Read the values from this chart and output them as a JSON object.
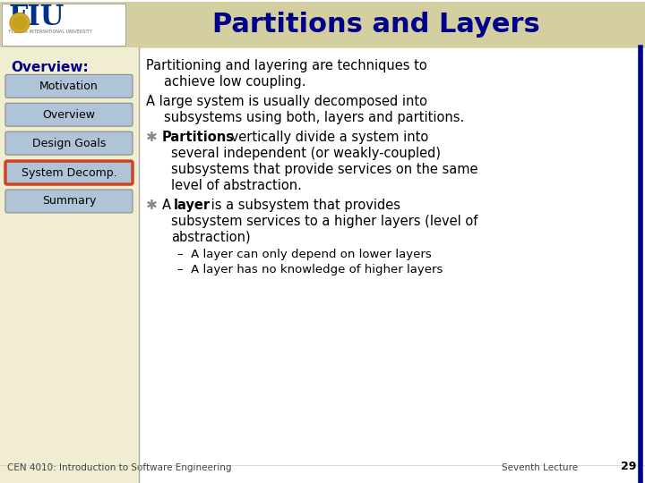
{
  "title": "Partitions and Layers",
  "title_color": "#00008B",
  "header_bg": "#D4CFA0",
  "header_stripe_color": "#C8C08A",
  "left_panel_bg": "#F0EDD0",
  "main_bg": "#FFFFFF",
  "overview_label": "Overview:",
  "nav_items": [
    "Motivation",
    "Overview",
    "Design Goals",
    "System Decomp.",
    "Summary"
  ],
  "nav_active": "System Decomp.",
  "nav_btn_color": "#B0C4D8",
  "nav_active_border": "#CC4422",
  "right_border_color": "#00008B",
  "footer_left": "CEN 4010: Introduction to Software Engineering",
  "footer_right": "Seventh Lecture",
  "footer_page": "29",
  "content_lines": [
    {
      "type": "bullet0",
      "text": "Partitioning and layering are techniques to\n    achieve low coupling."
    },
    {
      "type": "bullet0",
      "text": "A large system is usually decomposed into\n    subsystems using both, layers and partitions."
    },
    {
      "type": "bullet1_bold_start",
      "bold": "Partitions",
      "rest": " vertically divide a system into\n    several independent (or weakly-coupled)\n    subsystems that provide services on the same\n    level of abstraction."
    },
    {
      "type": "bullet1_bold_start",
      "bold": "A layer",
      "rest": " is a subsystem that provides\n    subsystem services to a higher layers (level of\n    abstraction)"
    },
    {
      "type": "sub_bullet",
      "text": "A layer can only depend on lower layers"
    },
    {
      "type": "sub_bullet",
      "text": "A layer has no knowledge of higher layers"
    }
  ]
}
